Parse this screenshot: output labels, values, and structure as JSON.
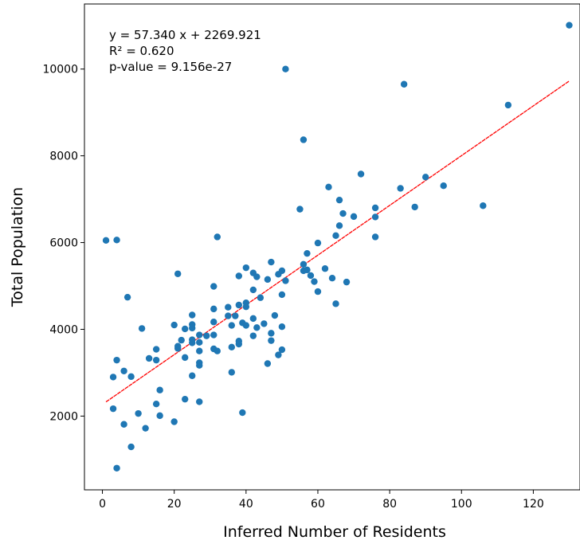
{
  "chart_data": {
    "type": "scatter",
    "xlabel": "Inferred Number of Residents",
    "ylabel": "Total Population",
    "xlim": [
      -5,
      133
    ],
    "ylim": [
      300,
      11500
    ],
    "x_ticks": [
      0,
      20,
      40,
      60,
      80,
      100,
      120
    ],
    "y_ticks": [
      2000,
      4000,
      6000,
      8000,
      10000
    ],
    "grid": false,
    "point_color": "#1f77b4",
    "fit_line_color": "#ff0000",
    "fit": {
      "slope": 57.34,
      "intercept": 2269.921,
      "x_range": [
        1,
        130
      ]
    },
    "annotations": {
      "equation": "y = 57.340 x + 2269.921",
      "r2": "R² = 0.620",
      "pvalue": "p-value = 9.156e-27"
    },
    "points": [
      [
        1,
        6050
      ],
      [
        4,
        6060
      ],
      [
        7,
        4740
      ],
      [
        11,
        4020
      ],
      [
        21,
        5280
      ],
      [
        32,
        6130
      ],
      [
        3,
        2900
      ],
      [
        4,
        3290
      ],
      [
        6,
        3040
      ],
      [
        8,
        2910
      ],
      [
        3,
        2170
      ],
      [
        6,
        1810
      ],
      [
        4,
        800
      ],
      [
        8,
        1290
      ],
      [
        10,
        2060
      ],
      [
        12,
        1720
      ],
      [
        13,
        3330
      ],
      [
        15,
        3540
      ],
      [
        15,
        3290
      ],
      [
        15,
        2280
      ],
      [
        16,
        2600
      ],
      [
        16,
        2010
      ],
      [
        20,
        4100
      ],
      [
        20,
        1870
      ],
      [
        21,
        3610
      ],
      [
        21,
        3560
      ],
      [
        22,
        3750
      ],
      [
        23,
        4010
      ],
      [
        23,
        3350
      ],
      [
        23,
        2390
      ],
      [
        25,
        4330
      ],
      [
        25,
        4110
      ],
      [
        25,
        4030
      ],
      [
        25,
        3760
      ],
      [
        25,
        3690
      ],
      [
        25,
        2930
      ],
      [
        27,
        3870
      ],
      [
        27,
        3700
      ],
      [
        27,
        3500
      ],
      [
        27,
        3230
      ],
      [
        27,
        3170
      ],
      [
        27,
        2330
      ],
      [
        29,
        3850
      ],
      [
        31,
        4990
      ],
      [
        31,
        4470
      ],
      [
        31,
        4170
      ],
      [
        31,
        3870
      ],
      [
        31,
        3550
      ],
      [
        32,
        3500
      ],
      [
        35,
        4510
      ],
      [
        35,
        4310
      ],
      [
        36,
        4090
      ],
      [
        36,
        3590
      ],
      [
        36,
        3010
      ],
      [
        37,
        4310
      ],
      [
        38,
        5230
      ],
      [
        38,
        4560
      ],
      [
        38,
        3730
      ],
      [
        38,
        3660
      ],
      [
        39,
        4150
      ],
      [
        39,
        2080
      ],
      [
        40,
        5420
      ],
      [
        40,
        4610
      ],
      [
        40,
        4520
      ],
      [
        40,
        4090
      ],
      [
        42,
        5300
      ],
      [
        42,
        4910
      ],
      [
        42,
        4250
      ],
      [
        42,
        3850
      ],
      [
        43,
        5210
      ],
      [
        43,
        4040
      ],
      [
        44,
        4730
      ],
      [
        45,
        4130
      ],
      [
        46,
        5150
      ],
      [
        46,
        3210
      ],
      [
        47,
        5550
      ],
      [
        47,
        3910
      ],
      [
        47,
        3740
      ],
      [
        48,
        4320
      ],
      [
        49,
        5270
      ],
      [
        49,
        3410
      ],
      [
        50,
        5350
      ],
      [
        50,
        4800
      ],
      [
        50,
        4060
      ],
      [
        50,
        3530
      ],
      [
        51,
        5120
      ],
      [
        51,
        10000
      ],
      [
        55,
        6770
      ],
      [
        56,
        8370
      ],
      [
        56,
        5500
      ],
      [
        56,
        5350
      ],
      [
        57,
        5750
      ],
      [
        57,
        5370
      ],
      [
        58,
        5240
      ],
      [
        59,
        5100
      ],
      [
        60,
        5990
      ],
      [
        60,
        4870
      ],
      [
        62,
        5400
      ],
      [
        63,
        7280
      ],
      [
        64,
        5180
      ],
      [
        65,
        6160
      ],
      [
        65,
        4590
      ],
      [
        66,
        6980
      ],
      [
        66,
        6390
      ],
      [
        67,
        6670
      ],
      [
        68,
        5090
      ],
      [
        70,
        6600
      ],
      [
        72,
        7580
      ],
      [
        76,
        6800
      ],
      [
        76,
        6590
      ],
      [
        76,
        6130
      ],
      [
        83,
        7250
      ],
      [
        84,
        9650
      ],
      [
        87,
        6820
      ],
      [
        90,
        7510
      ],
      [
        95,
        7310
      ],
      [
        106,
        6850
      ],
      [
        113,
        9170
      ],
      [
        130,
        11010
      ]
    ]
  }
}
